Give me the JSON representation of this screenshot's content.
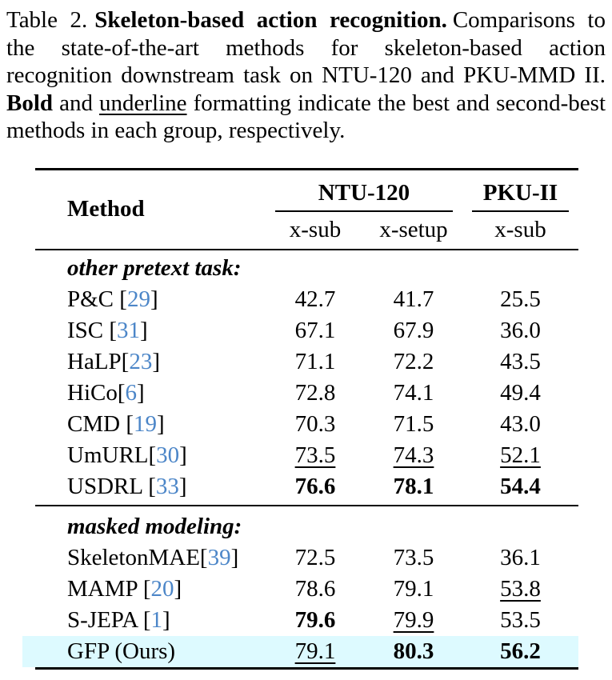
{
  "caption": {
    "segments": [
      {
        "text": "Table 2."
      },
      {
        "text": "Skeleton-based action recognition."
      },
      {
        "text": "Comparisons to the state-of-the-art methods for skeleton-based action recognition downstream task on NTU-120 and PKU-MMD II. "
      },
      {
        "text": "Bold"
      },
      {
        "text": " and "
      },
      {
        "text": "underline"
      },
      {
        "text": " formatting indicate the best and second-best methods in each group, respectively."
      }
    ]
  },
  "table": {
    "accent_citation_color": "#4c86c8",
    "highlight_color": "#ddfaff",
    "header": {
      "method_label": "Method",
      "group_cols": [
        {
          "label": "NTU-120"
        },
        {
          "label": "PKU-II"
        }
      ],
      "sub_cols": [
        "x-sub",
        "x-setup",
        "x-sub"
      ]
    },
    "groups": [
      {
        "label": "other pretext task:",
        "rows": [
          {
            "method_pre": "P&C [",
            "cite": "29",
            "method_post": "]",
            "highlight": false,
            "values": [
              {
                "v": "42.7",
                "s": "n"
              },
              {
                "v": "41.7",
                "s": "n"
              },
              {
                "v": "25.5",
                "s": "n"
              }
            ]
          },
          {
            "method_pre": "ISC [",
            "cite": "31",
            "method_post": "]",
            "highlight": false,
            "values": [
              {
                "v": "67.1",
                "s": "n"
              },
              {
                "v": "67.9",
                "s": "n"
              },
              {
                "v": "36.0",
                "s": "n"
              }
            ]
          },
          {
            "method_pre": "HaLP[",
            "cite": "23",
            "method_post": "]",
            "highlight": false,
            "values": [
              {
                "v": "71.1",
                "s": "n"
              },
              {
                "v": "72.2",
                "s": "n"
              },
              {
                "v": "43.5",
                "s": "n"
              }
            ]
          },
          {
            "method_pre": "HiCo[",
            "cite": "6",
            "method_post": "]",
            "highlight": false,
            "values": [
              {
                "v": "72.8",
                "s": "n"
              },
              {
                "v": "74.1",
                "s": "n"
              },
              {
                "v": "49.4",
                "s": "n"
              }
            ]
          },
          {
            "method_pre": "CMD [",
            "cite": "19",
            "method_post": "]",
            "highlight": false,
            "values": [
              {
                "v": "70.3",
                "s": "n"
              },
              {
                "v": "71.5",
                "s": "n"
              },
              {
                "v": "43.0",
                "s": "n"
              }
            ]
          },
          {
            "method_pre": "UmURL[",
            "cite": "30",
            "method_post": "]",
            "highlight": false,
            "values": [
              {
                "v": "73.5",
                "s": "u"
              },
              {
                "v": "74.3",
                "s": "u"
              },
              {
                "v": "52.1",
                "s": "u"
              }
            ]
          },
          {
            "method_pre": "USDRL [",
            "cite": "33",
            "method_post": "]",
            "highlight": false,
            "values": [
              {
                "v": "76.6",
                "s": "b"
              },
              {
                "v": "78.1",
                "s": "b"
              },
              {
                "v": "54.4",
                "s": "b"
              }
            ]
          }
        ]
      },
      {
        "label": "masked modeling:",
        "rows": [
          {
            "method_pre": "SkeletonMAE[",
            "cite": "39",
            "method_post": "]",
            "highlight": false,
            "values": [
              {
                "v": "72.5",
                "s": "n"
              },
              {
                "v": "73.5",
                "s": "n"
              },
              {
                "v": "36.1",
                "s": "n"
              }
            ]
          },
          {
            "method_pre": "MAMP [",
            "cite": "20",
            "method_post": "]",
            "highlight": false,
            "values": [
              {
                "v": "78.6",
                "s": "n"
              },
              {
                "v": "79.1",
                "s": "n"
              },
              {
                "v": "53.8",
                "s": "u"
              }
            ]
          },
          {
            "method_pre": "S-JEPA [",
            "cite": "1",
            "method_post": "]",
            "highlight": false,
            "values": [
              {
                "v": "79.6",
                "s": "b"
              },
              {
                "v": "79.9",
                "s": "u"
              },
              {
                "v": "53.5",
                "s": "n"
              }
            ]
          },
          {
            "method_pre": "GFP (Ours)",
            "cite": "",
            "method_post": "",
            "highlight": true,
            "values": [
              {
                "v": "79.1",
                "s": "u"
              },
              {
                "v": "80.3",
                "s": "b"
              },
              {
                "v": "56.2",
                "s": "b"
              }
            ]
          }
        ]
      }
    ]
  }
}
